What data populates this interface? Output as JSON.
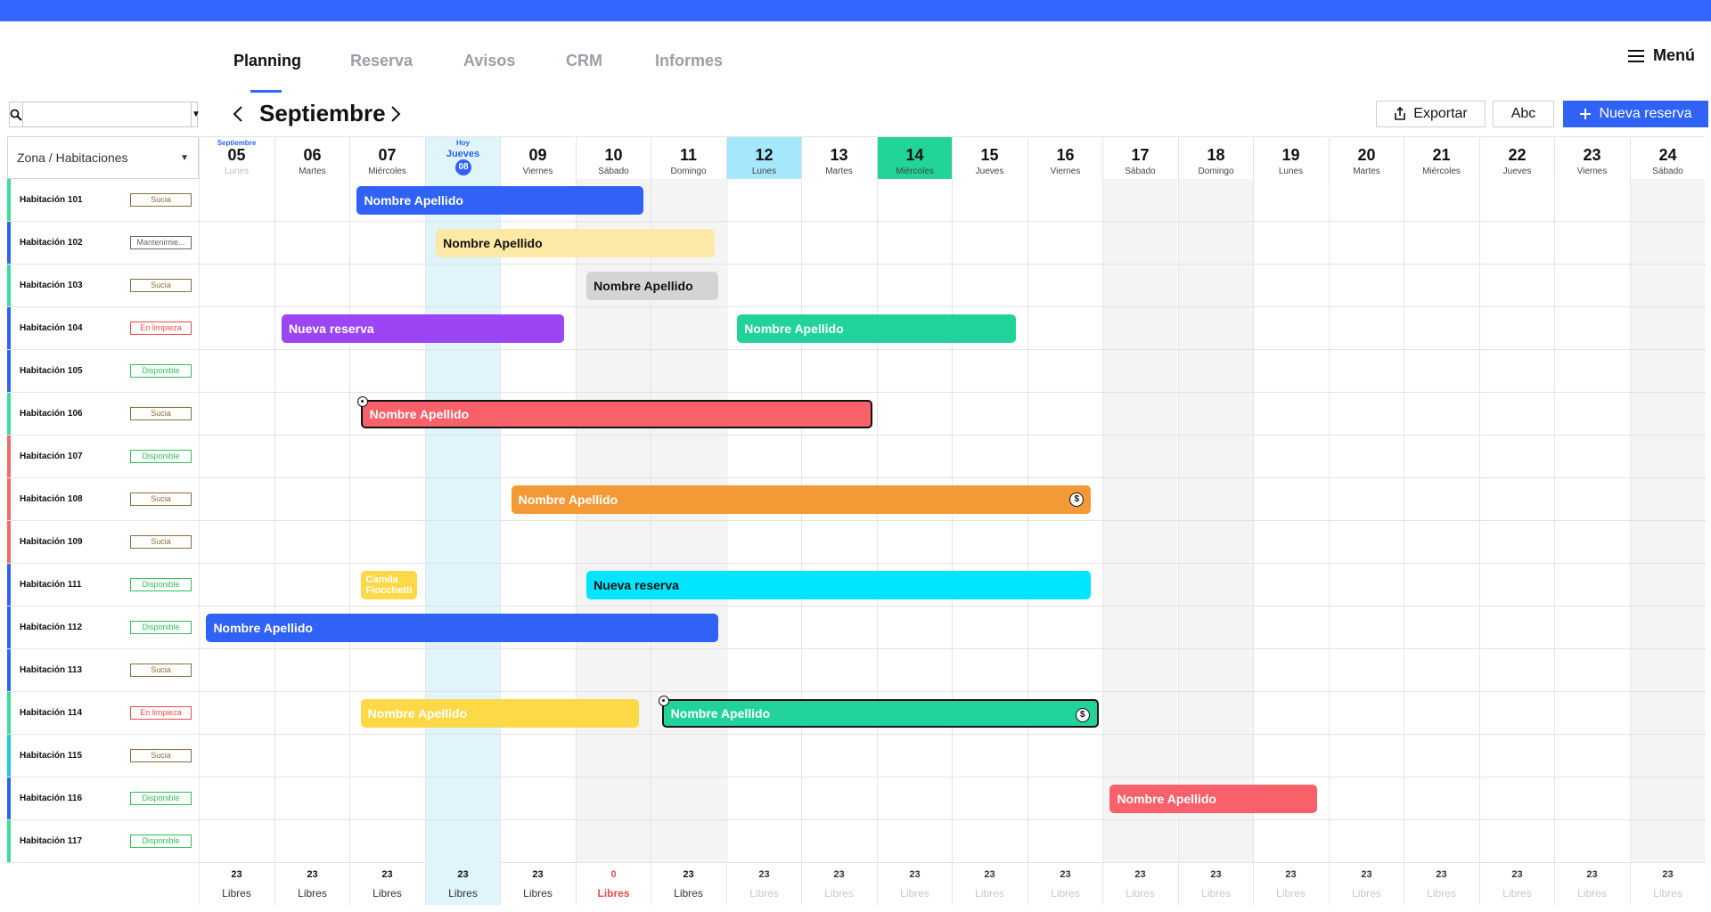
{
  "nav": {
    "tabs": [
      {
        "label": "Planning",
        "active": true
      },
      {
        "label": "Reserva",
        "active": false
      },
      {
        "label": "Avisos",
        "active": false
      },
      {
        "label": "CRM",
        "active": false
      },
      {
        "label": "Informes",
        "active": false
      }
    ],
    "menu_label": "Menú"
  },
  "toolbar": {
    "search_value": "",
    "month": "Septiembre",
    "export_label": "Exportar",
    "abc_label": "Abc",
    "new_booking_label": "Nueva reserva"
  },
  "grid": {
    "zone_label": "Zona / Habitaciones",
    "days": [
      {
        "num": "05",
        "name": "Lunes",
        "month": "Septiembre",
        "style": "past"
      },
      {
        "num": "06",
        "name": "Martes",
        "style": "normal"
      },
      {
        "num": "07",
        "name": "Miércoles",
        "style": "normal"
      },
      {
        "num": "08",
        "name": "Jueves",
        "today_label": "Hoy",
        "style": "today"
      },
      {
        "num": "09",
        "name": "Viernes",
        "style": "normal"
      },
      {
        "num": "10",
        "name": "Sábado",
        "style": "weekend"
      },
      {
        "num": "11",
        "name": "Domingo",
        "style": "weekend"
      },
      {
        "num": "12",
        "name": "Lunes",
        "style": "cyan"
      },
      {
        "num": "13",
        "name": "Martes",
        "style": "normal"
      },
      {
        "num": "14",
        "name": "Miércoles",
        "style": "green"
      },
      {
        "num": "15",
        "name": "Jueves",
        "style": "normal"
      },
      {
        "num": "16",
        "name": "Viernes",
        "style": "normal"
      },
      {
        "num": "17",
        "name": "Sábado",
        "style": "weekend"
      },
      {
        "num": "18",
        "name": "Domingo",
        "style": "weekend"
      },
      {
        "num": "19",
        "name": "Lunes",
        "style": "normal"
      },
      {
        "num": "20",
        "name": "Martes",
        "style": "normal"
      },
      {
        "num": "21",
        "name": "Miércoles",
        "style": "normal"
      },
      {
        "num": "22",
        "name": "Jueves",
        "style": "normal"
      },
      {
        "num": "23",
        "name": "Viernes",
        "style": "normal"
      },
      {
        "num": "24",
        "name": "Sábado",
        "style": "weekend"
      }
    ],
    "rooms": [
      {
        "name": "Habitación 101",
        "status": "Sucia",
        "status_color": "#8a6d3b",
        "bar_color": "#3ddc97"
      },
      {
        "name": "Habitación 102",
        "status": "Mantenimie...",
        "status_color": "#666666",
        "bar_color": "#2f62f5"
      },
      {
        "name": "Habitación 103",
        "status": "Sucia",
        "status_color": "#8a6d3b",
        "bar_color": "#3ddc97"
      },
      {
        "name": "Habitación 104",
        "status": "En limpieza",
        "status_color": "#f04b4b",
        "bar_color": "#2f62f5"
      },
      {
        "name": "Habitación 105",
        "status": "Disponible",
        "status_color": "#2fbf5b",
        "bar_color": "#2f62f5"
      },
      {
        "name": "Habitación 106",
        "status": "Sucia",
        "status_color": "#8a6d3b",
        "bar_color": "#3ddc97"
      },
      {
        "name": "Habitación 107",
        "status": "Disponible",
        "status_color": "#2fbf5b",
        "bar_color": "#f06a6a"
      },
      {
        "name": "Habitación 108",
        "status": "Sucia",
        "status_color": "#8a6d3b",
        "bar_color": "#f06a6a"
      },
      {
        "name": "Habitación 109",
        "status": "Sucia",
        "status_color": "#8a6d3b",
        "bar_color": "#f06a6a"
      },
      {
        "name": "Habitación 111",
        "status": "Disponible",
        "status_color": "#2fbf5b",
        "bar_color": "#2f62f5"
      },
      {
        "name": "Habitación 112",
        "status": "Disponible",
        "status_color": "#2fbf5b",
        "bar_color": "#2f62f5"
      },
      {
        "name": "Habitación 113",
        "status": "Sucia",
        "status_color": "#8a6d3b",
        "bar_color": "#2f62f5"
      },
      {
        "name": "Habitación 114",
        "status": "En limpieza",
        "status_color": "#f04b4b",
        "bar_color": "#3ddc97"
      },
      {
        "name": "Habitación 115",
        "status": "Sucia",
        "status_color": "#8a6d3b",
        "bar_color": "#22c7d6"
      },
      {
        "name": "Habitación 116",
        "status": "Disponible",
        "status_color": "#2fbf5b",
        "bar_color": "#2f62f5"
      },
      {
        "name": "Habitación 117",
        "status": "Disponible",
        "status_color": "#2fbf5b",
        "bar_color": "#3ddc97"
      }
    ],
    "bookings": [
      {
        "room": 0,
        "start": 2.1,
        "end": 5.9,
        "label": "Nombre Apellido",
        "color": "#2f62f5",
        "dark_text": false
      },
      {
        "room": 1,
        "start": 3.15,
        "end": 6.85,
        "label": "Nombre Apellido",
        "color": "#fde9a6",
        "dark_text": true
      },
      {
        "room": 2,
        "start": 5.15,
        "end": 6.9,
        "label": "Nombre Apellido",
        "color": "#d4d4d6",
        "dark_text": true
      },
      {
        "room": 3,
        "start": 1.1,
        "end": 4.85,
        "label": "Nueva reserva",
        "color": "#9b45f5",
        "dark_text": false
      },
      {
        "room": 3,
        "start": 7.15,
        "end": 10.85,
        "label": "Nombre Apellido",
        "color": "#21d39a",
        "dark_text": false
      },
      {
        "room": 5,
        "start": 2.15,
        "end": 8.95,
        "label": "Nombre Apellido",
        "color": "#f8616a",
        "dark_text": false,
        "selected": true,
        "handle": true
      },
      {
        "room": 7,
        "start": 4.15,
        "end": 11.85,
        "label": "Nombre Apellido",
        "color": "#f39a37",
        "dark_text": false,
        "dollar": true
      },
      {
        "room": 9,
        "start": 2.15,
        "end": 2.9,
        "label": "Camila Fiocchetti",
        "color": "#fed947",
        "dark_text": false,
        "small": true
      },
      {
        "room": 9,
        "start": 5.15,
        "end": 11.85,
        "label": "Nueva reserva",
        "color": "#00e5ff",
        "dark_text": true
      },
      {
        "room": 10,
        "start": 0.1,
        "end": 6.9,
        "label": "Nombre Apellido",
        "color": "#2f62f5",
        "dark_text": false
      },
      {
        "room": 12,
        "start": 2.15,
        "end": 5.85,
        "label": "Nombre Apellido",
        "color": "#fed947",
        "dark_text": false
      },
      {
        "room": 12,
        "start": 6.15,
        "end": 11.95,
        "label": "Nombre Apellido",
        "color": "#21d39a",
        "dark_text": false,
        "selected": true,
        "handle": true,
        "dollar": true
      },
      {
        "room": 14,
        "start": 12.1,
        "end": 14.85,
        "label": "Nombre Apellido",
        "color": "#f8616a",
        "dark_text": false
      }
    ],
    "footer": [
      {
        "count": "23",
        "label": "Libres"
      },
      {
        "count": "23",
        "label": "Libres"
      },
      {
        "count": "23",
        "label": "Libres"
      },
      {
        "count": "23",
        "label": "Libres"
      },
      {
        "count": "23",
        "label": "Libres"
      },
      {
        "count": "0",
        "label": "Libres",
        "alert": true
      },
      {
        "count": "23",
        "label": "Libres"
      },
      {
        "count": "23",
        "label": "Libres",
        "faded": true
      },
      {
        "count": "23",
        "label": "Libres",
        "faded": true
      },
      {
        "count": "23",
        "label": "Libres",
        "faded": true
      },
      {
        "count": "23",
        "label": "Libres",
        "faded": true
      },
      {
        "count": "23",
        "label": "Libres",
        "faded": true
      },
      {
        "count": "23",
        "label": "Libres",
        "faded": true
      },
      {
        "count": "23",
        "label": "Libres",
        "faded": true
      },
      {
        "count": "23",
        "label": "Libres",
        "faded": true
      },
      {
        "count": "23",
        "label": "Libres",
        "faded": true
      },
      {
        "count": "23",
        "label": "Libres",
        "faded": true
      },
      {
        "count": "23",
        "label": "Libres",
        "faded": true
      },
      {
        "count": "23",
        "label": "Libres",
        "faded": true
      },
      {
        "count": "23",
        "label": "Libres",
        "faded": true
      }
    ],
    "colors": {
      "accent": "#3366ff",
      "today_col": "#dff4fb",
      "weekend_col": "#f4f4f4",
      "cyan_head": "#a6e8fb",
      "green_head": "#22d39a",
      "alert": "#f04b4b"
    }
  }
}
